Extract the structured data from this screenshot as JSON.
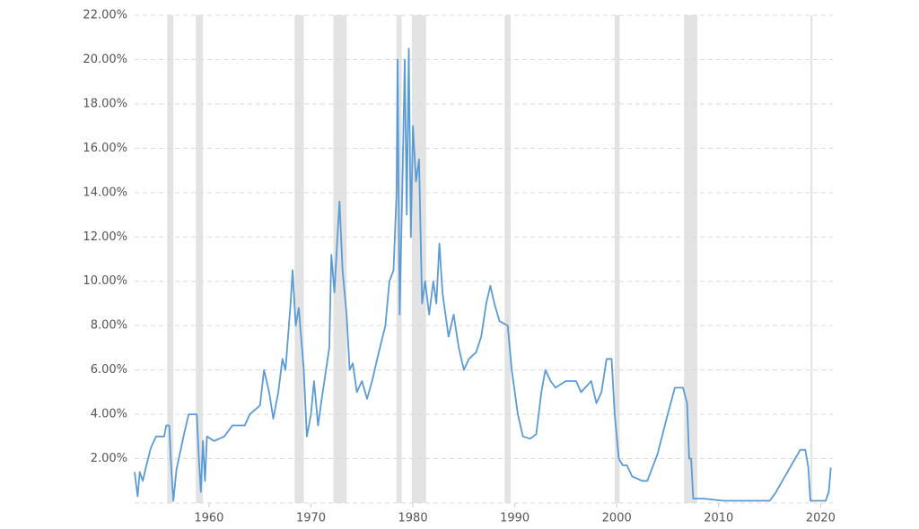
{
  "chart_data": {
    "type": "line",
    "x": [
      1952.7,
      1953.0,
      1953.2,
      1953.5,
      1953.8,
      1954.3,
      1954.8,
      1955.6,
      1955.8,
      1956.1,
      1956.3,
      1956.5,
      1956.8,
      1957.5,
      1958.0,
      1958.8,
      1959.0,
      1959.2,
      1959.4,
      1959.6,
      1959.8,
      1960.5,
      1961.5,
      1962.3,
      1963.5,
      1964.0,
      1965.0,
      1965.4,
      1965.9,
      1966.3,
      1966.8,
      1967.2,
      1967.5,
      1968.0,
      1968.2,
      1968.5,
      1968.8,
      1969.3,
      1969.6,
      1970.0,
      1970.3,
      1970.7,
      1971.0,
      1971.8,
      1972.0,
      1972.3,
      1972.6,
      1972.8,
      1973.1,
      1973.5,
      1973.8,
      1974.1,
      1974.5,
      1975.0,
      1975.5,
      1976.0,
      1976.5,
      1977.3,
      1977.7,
      1978.1,
      1978.4,
      1978.5,
      1978.7,
      1979.0,
      1979.2,
      1979.4,
      1979.6,
      1979.8,
      1980.0,
      1980.3,
      1980.6,
      1980.9,
      1981.2,
      1981.6,
      1982.0,
      1982.3,
      1982.6,
      1982.9,
      1983.5,
      1984.0,
      1984.5,
      1985.0,
      1985.5,
      1986.2,
      1986.7,
      1987.2,
      1987.6,
      1988.0,
      1988.5,
      1989.3,
      1989.7,
      1990.3,
      1990.8,
      1991.5,
      1992.1,
      1992.6,
      1993.0,
      1993.5,
      1994.0,
      1995.0,
      1996.0,
      1996.5,
      1997.5,
      1998.0,
      1998.5,
      1999.0,
      1999.5,
      1999.8,
      2000.2,
      2000.6,
      2001.0,
      2001.5,
      2002.5,
      2003.0,
      2004.0,
      2005.0,
      2005.7,
      2006.5,
      2006.9,
      2007.1,
      2007.3,
      2007.5,
      2008.5,
      2010.5,
      2015.0,
      2015.5,
      2016.5,
      2017.5,
      2018.0,
      2018.5,
      2018.8,
      2019.0,
      2020.5,
      2020.8,
      2021.0
    ],
    "values": [
      1.4,
      0.3,
      1.4,
      1.0,
      1.6,
      2.5,
      3.0,
      3.0,
      3.5,
      3.5,
      1.5,
      0.1,
      1.5,
      3.0,
      4.0,
      4.0,
      2.0,
      0.5,
      2.8,
      1.0,
      3.0,
      2.8,
      3.0,
      3.5,
      3.5,
      4.0,
      4.4,
      6.0,
      5.0,
      3.8,
      5.0,
      6.5,
      6.0,
      9.0,
      10.5,
      8.0,
      8.8,
      6.0,
      3.0,
      4.0,
      5.5,
      3.5,
      4.5,
      7.0,
      11.2,
      9.5,
      12.0,
      13.6,
      10.5,
      8.5,
      6.0,
      6.3,
      5.0,
      5.5,
      4.7,
      5.5,
      6.5,
      8.0,
      10.0,
      10.5,
      14.0,
      20.0,
      8.5,
      15.0,
      20.0,
      13.0,
      20.5,
      12.0,
      17.0,
      14.5,
      15.5,
      9.0,
      10.0,
      8.5,
      10.0,
      9.0,
      11.7,
      9.5,
      7.5,
      8.5,
      7.0,
      6.0,
      6.5,
      6.8,
      7.5,
      9.0,
      9.8,
      9.0,
      8.2,
      8.0,
      6.0,
      4.0,
      3.0,
      2.9,
      3.1,
      5.0,
      6.0,
      5.5,
      5.2,
      5.5,
      5.5,
      5.0,
      5.5,
      4.5,
      5.0,
      6.5,
      6.5,
      4.0,
      2.0,
      1.7,
      1.7,
      1.2,
      1.0,
      1.0,
      2.2,
      4.0,
      5.2,
      5.2,
      4.5,
      2.0,
      2.0,
      0.2,
      0.2,
      0.1,
      0.1,
      0.4,
      1.2,
      2.0,
      2.4,
      2.4,
      1.6,
      0.1,
      0.1,
      0.5,
      1.6
    ],
    "color": "#5b9bd5",
    "recessions": [
      [
        1955.9,
        1956.5
      ],
      [
        1958.7,
        1959.4
      ],
      [
        1968.4,
        1969.3
      ],
      [
        1972.2,
        1973.5
      ],
      [
        1978.4,
        1978.9
      ],
      [
        1979.9,
        1981.3
      ],
      [
        1989.0,
        1989.6
      ],
      [
        1999.8,
        2000.3
      ],
      [
        2006.6,
        2007.9
      ],
      [
        2019.0,
        2019.2
      ]
    ],
    "recession_color": "#e3e3e3",
    "xlim": [
      1952.7,
      2021.2
    ],
    "xticks": [
      1960,
      1970,
      1980,
      1990,
      2000,
      2010,
      2020
    ],
    "ylim": [
      0,
      22
    ],
    "yticks": [
      {
        "value": 2,
        "label": "2.00%"
      },
      {
        "value": 4,
        "label": "4.00%"
      },
      {
        "value": 6,
        "label": "6.00%"
      },
      {
        "value": 8,
        "label": "8.00%"
      },
      {
        "value": 10,
        "label": "10.00%"
      },
      {
        "value": 12,
        "label": "12.00%"
      },
      {
        "value": 14,
        "label": "14.00%"
      },
      {
        "value": 16,
        "label": "16.00%"
      },
      {
        "value": 18,
        "label": "18.00%"
      },
      {
        "value": 20,
        "label": "20.00%"
      },
      {
        "value": 22,
        "label": "22.00%"
      }
    ],
    "grid": true
  }
}
